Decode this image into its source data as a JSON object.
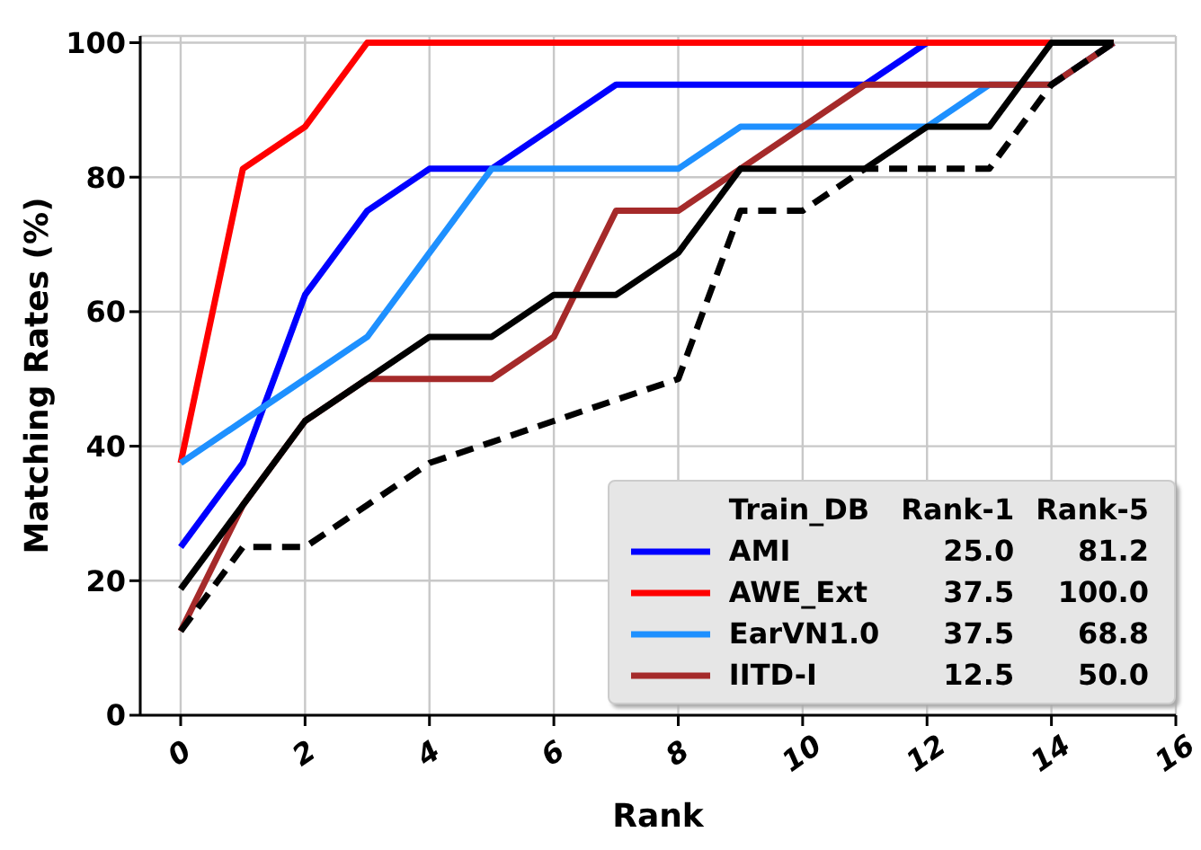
{
  "chart_data": {
    "type": "line",
    "xlabel": "Rank",
    "ylabel": "Matching Rates (%)",
    "legend_title": "Train_DB",
    "annotations": [
      "Rank-1",
      "Rank-5",
      "25.0",
      "81.2",
      "37.5",
      "100.0",
      "37.5",
      "68.8",
      "12.5",
      "50.0"
    ],
    "x": [
      0,
      1,
      2,
      3,
      4,
      5,
      6,
      7,
      8,
      9,
      10,
      11,
      12,
      13,
      14,
      15
    ],
    "xlim": [
      -0.65,
      16
    ],
    "xticks": [
      0,
      2,
      4,
      6,
      8,
      10,
      12,
      14,
      16
    ],
    "ylim": [
      0,
      101
    ],
    "yticks": [
      0,
      20,
      40,
      60,
      80,
      100
    ],
    "grid": true,
    "legend": "bottom right",
    "marker": "none",
    "line_style": "solid",
    "series": [
      {
        "name": "AMI",
        "color": "#0000ff",
        "values": [
          25,
          37.5,
          62.5,
          75,
          81.25,
          81.25,
          87.5,
          93.75,
          93.75,
          93.75,
          93.75,
          93.75,
          100,
          null,
          null,
          null
        ]
      },
      {
        "name": "AWE_Ext",
        "color": "#ff0000",
        "values": [
          37.5,
          81.25,
          87.5,
          100,
          100,
          100,
          100,
          100,
          100,
          100,
          100,
          100,
          100,
          100,
          100,
          100
        ]
      },
      {
        "name": "EarVN1.0",
        "color": "#1e90ff",
        "values": [
          37.5,
          43.75,
          50,
          56.25,
          68.75,
          81.25,
          81.25,
          81.25,
          81.25,
          87.5,
          87.5,
          87.5,
          87.5,
          93.75,
          93.75,
          100
        ]
      },
      {
        "name": "IITD-I",
        "color": "#a52a2a",
        "values": [
          12.5,
          31.25,
          43.75,
          50,
          50,
          50,
          56.25,
          75,
          75,
          81.25,
          87.5,
          93.75,
          93.75,
          93.75,
          93.75,
          100
        ]
      },
      {
        "color": "#000000",
        "values": [
          18.75,
          31.25,
          43.75,
          50,
          56.25,
          56.25,
          62.5,
          62.5,
          68.75,
          81.25,
          81.25,
          81.25,
          87.5,
          87.5,
          100,
          100
        ]
      },
      {
        "color": "#000000",
        "line_style": "dashed",
        "values": [
          12.5,
          25,
          25,
          31.25,
          37.5,
          40.6,
          43.75,
          46.9,
          50,
          75,
          75,
          81.25,
          81.25,
          81.25,
          93.75,
          100
        ]
      }
    ]
  }
}
